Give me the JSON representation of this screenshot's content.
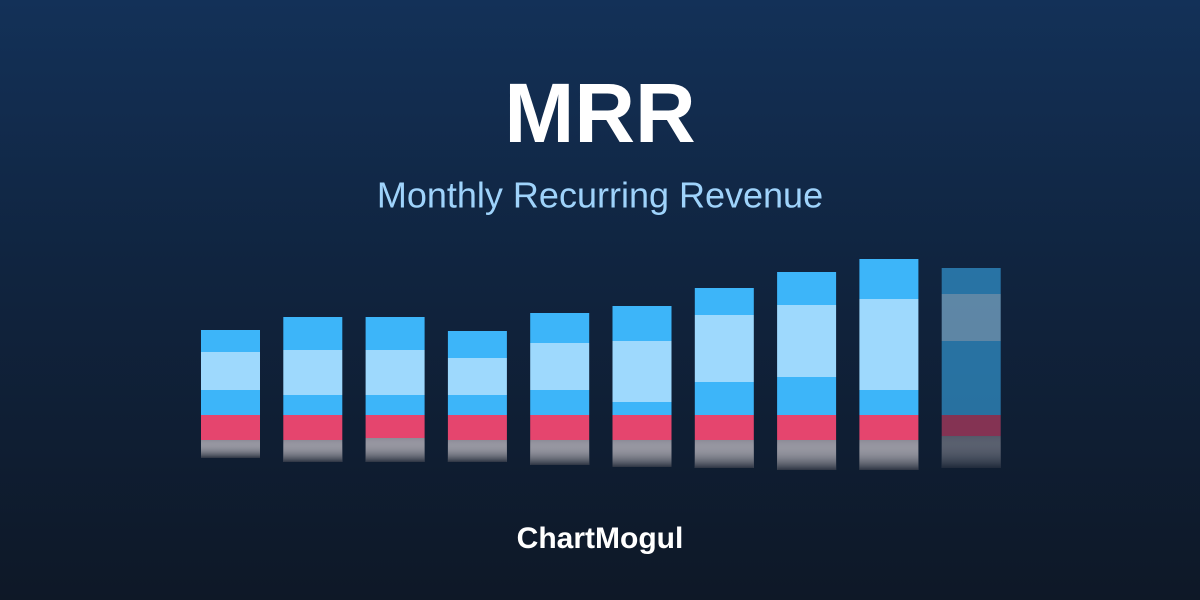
{
  "chart_data": {
    "type": "stacked-bar",
    "title": "MRR",
    "subtitle": "Monthly Recurring Revenue",
    "categories": [
      null,
      null,
      null,
      null,
      null,
      null,
      null,
      null,
      null,
      null
    ],
    "series": [
      {
        "color": "#3db5f9",
        "values": [
          25,
          20,
          20,
          20,
          25,
          13,
          33,
          38,
          25,
          74
        ]
      },
      {
        "color": "#9ed9fd",
        "values": [
          38,
          45,
          45,
          37,
          47,
          61,
          67,
          72,
          91,
          47
        ]
      },
      {
        "color": "#3db5f9",
        "values": [
          22,
          33,
          33,
          27,
          30,
          35,
          27,
          33,
          40,
          26
        ]
      },
      {
        "color": "#e5456e",
        "values": [
          -25,
          -25,
          -23,
          -25,
          -25,
          -25,
          -25,
          -25,
          -25,
          -21
        ]
      },
      {
        "color": "#8c8b97",
        "values": [
          -18,
          -22,
          -24,
          -22,
          -25,
          -27,
          -28,
          -30,
          -30,
          -32
        ]
      }
    ]
  },
  "footer": {
    "logo": "ChartMogul"
  }
}
